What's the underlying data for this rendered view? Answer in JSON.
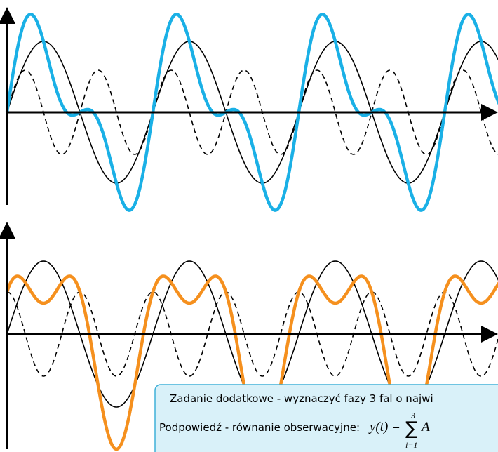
{
  "task": {
    "line1": "Zadanie dodatkowe - wyznaczyć fazy 3 fal o najwi",
    "hint_label": "Podpowiedź - równanie obserwacyjne:",
    "formula_lhs": "y(t) =",
    "sum_upper": "3",
    "sum_lower": "i=1",
    "sum_symbol": "∑",
    "term": "A"
  }
}
